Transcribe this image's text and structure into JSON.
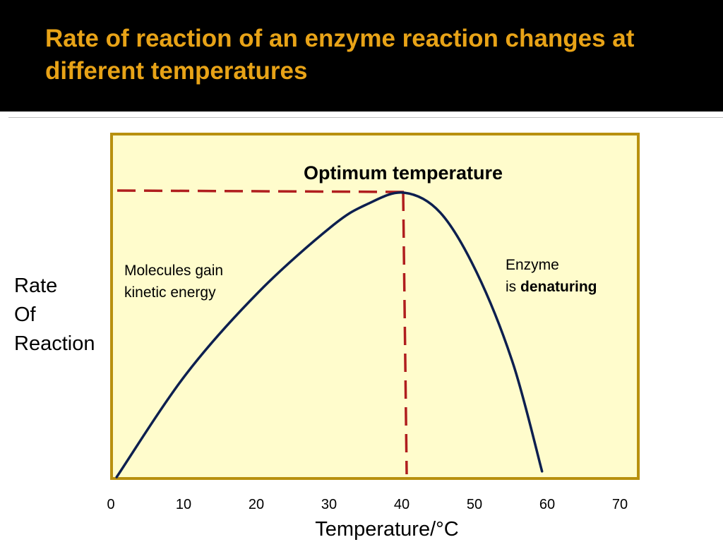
{
  "slide": {
    "title": "Rate of reaction of an enzyme reaction changes at different temperatures",
    "colors": {
      "title_bar": "#000000",
      "title_text": "#e8a317",
      "plot_background": "#fffccc",
      "plot_border": "#b8900f",
      "curve": "#0d1f4f",
      "guide_lines": "#b01e1e"
    }
  },
  "chart_data": {
    "type": "line",
    "title": "",
    "xlabel": "Temperature/°C",
    "ylabel_lines": [
      "Rate",
      "Of",
      "Reaction"
    ],
    "xlim": [
      0,
      72.6
    ],
    "ylim": [
      0,
      1
    ],
    "x_ticks": [
      "0",
      "10",
      "20",
      "30",
      "40",
      "50",
      "60",
      "70"
    ],
    "grid": false,
    "legend": "none",
    "series": [
      {
        "points": [
          [
            0.5,
            0.0
          ],
          [
            10,
            0.36
          ],
          [
            20,
            0.65
          ],
          [
            30,
            0.88
          ],
          [
            35,
            0.96
          ],
          [
            40,
            1.0
          ],
          [
            45,
            0.93
          ],
          [
            50,
            0.72
          ],
          [
            55,
            0.4
          ],
          [
            59,
            0.02
          ]
        ]
      }
    ],
    "optimum": {
      "x": 40,
      "y": 1.0
    },
    "annotations": {
      "optimum_label": "Optimum temperature",
      "gain_line1": "Molecules gain",
      "gain_line2": "kinetic energy",
      "denature_line1": "Enzyme",
      "denature_prefix": "is ",
      "denature_bold": "denaturing"
    }
  }
}
